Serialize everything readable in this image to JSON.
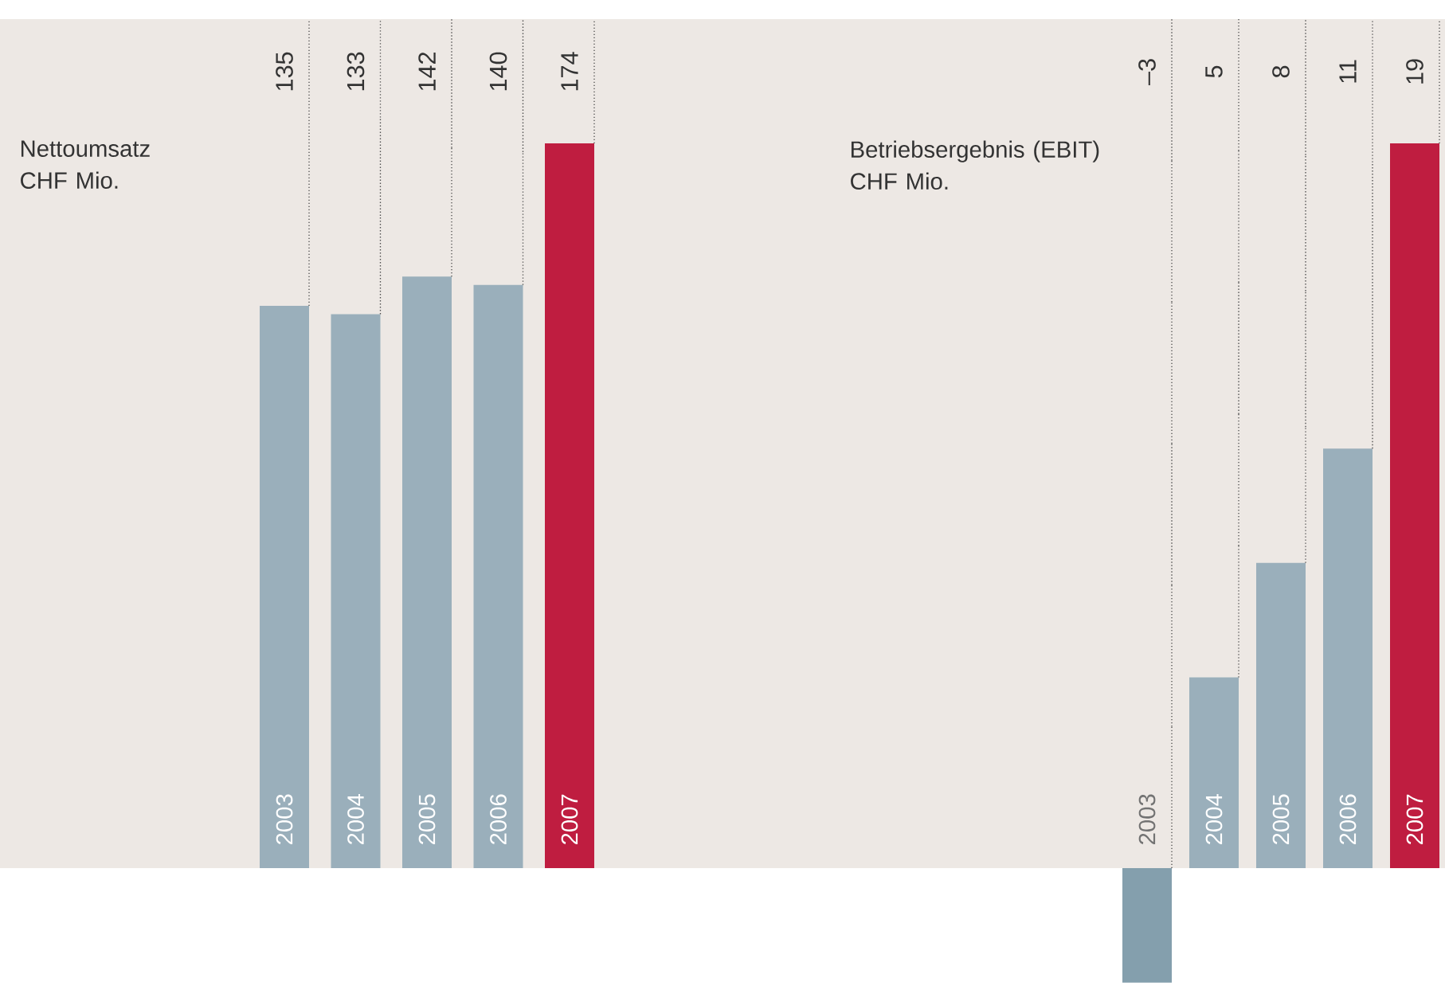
{
  "chart_data": [
    {
      "type": "bar",
      "title": "Nettoumsatz CHF Mio.",
      "categories": [
        "2003",
        "2004",
        "2005",
        "2006",
        "2007"
      ],
      "values": [
        135,
        133,
        142,
        140,
        174
      ],
      "value_labels": [
        "135",
        "133",
        "142",
        "140",
        "174"
      ],
      "colors": [
        "#9aafbb",
        "#9aafbb",
        "#9aafbb",
        "#9aafbb",
        "#bf1d40"
      ],
      "ylim": [
        0,
        174
      ]
    },
    {
      "type": "bar",
      "title": "Betriebsergebnis (EBIT) CHF Mio.",
      "categories": [
        "2003",
        "2004",
        "2005",
        "2006",
        "2007"
      ],
      "values": [
        -3,
        5,
        8,
        11,
        19
      ],
      "value_labels": [
        "–3",
        "5",
        "8",
        "11",
        "19"
      ],
      "colors": [
        "#849fad",
        "#9aafbb",
        "#9aafbb",
        "#9aafbb",
        "#bf1d40"
      ],
      "ylim": [
        -3,
        19
      ]
    }
  ]
}
